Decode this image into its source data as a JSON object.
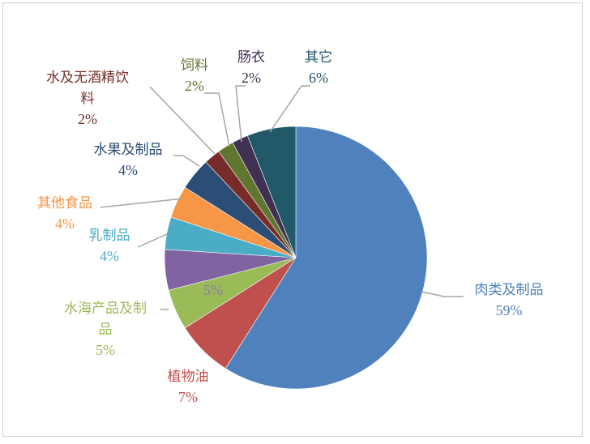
{
  "chart_data": {
    "type": "pie",
    "title": "",
    "legend": "none",
    "slices": [
      {
        "label_lines": [
          "肉类及制品"
        ],
        "value": 59,
        "value_label": "59%",
        "color": "#4f81bd",
        "label_color": "#4f81bd"
      },
      {
        "label_lines": [
          "植物油"
        ],
        "value": 7,
        "value_label": "7%",
        "color": "#c0504d",
        "label_color": "#c0504d"
      },
      {
        "label_lines": [
          "水海产品及制",
          "品"
        ],
        "value": 5,
        "value_label": "5%",
        "color": "#9bbb59",
        "label_color": "#9bbb59"
      },
      {
        "label_lines": [],
        "value": 5,
        "value_label": "5%",
        "color": "#8064a2",
        "label_color": "#8064a2"
      },
      {
        "label_lines": [
          "乳制品"
        ],
        "value": 4,
        "value_label": "4%",
        "color": "#4bacc6",
        "label_color": "#4bacc6"
      },
      {
        "label_lines": [
          "其他食品"
        ],
        "value": 4,
        "value_label": "4%",
        "color": "#f79646",
        "label_color": "#f79646"
      },
      {
        "label_lines": [
          "水果及制品"
        ],
        "value": 4,
        "value_label": "4%",
        "color": "#2c4d75",
        "label_color": "#2c4d75"
      },
      {
        "label_lines": [
          "水及无酒精饮",
          "料"
        ],
        "value": 2,
        "value_label": "2%",
        "color": "#772c2a",
        "label_color": "#772c2a"
      },
      {
        "label_lines": [
          "饲料"
        ],
        "value": 2,
        "value_label": "2%",
        "color": "#5f7530",
        "label_color": "#5f7530"
      },
      {
        "label_lines": [
          "肠衣"
        ],
        "value": 2,
        "value_label": "2%",
        "color": "#403152",
        "label_color": "#403152"
      },
      {
        "label_lines": [
          "其它"
        ],
        "value": 6,
        "value_label": "6%",
        "color": "#215968",
        "label_color": "#215968"
      }
    ]
  }
}
